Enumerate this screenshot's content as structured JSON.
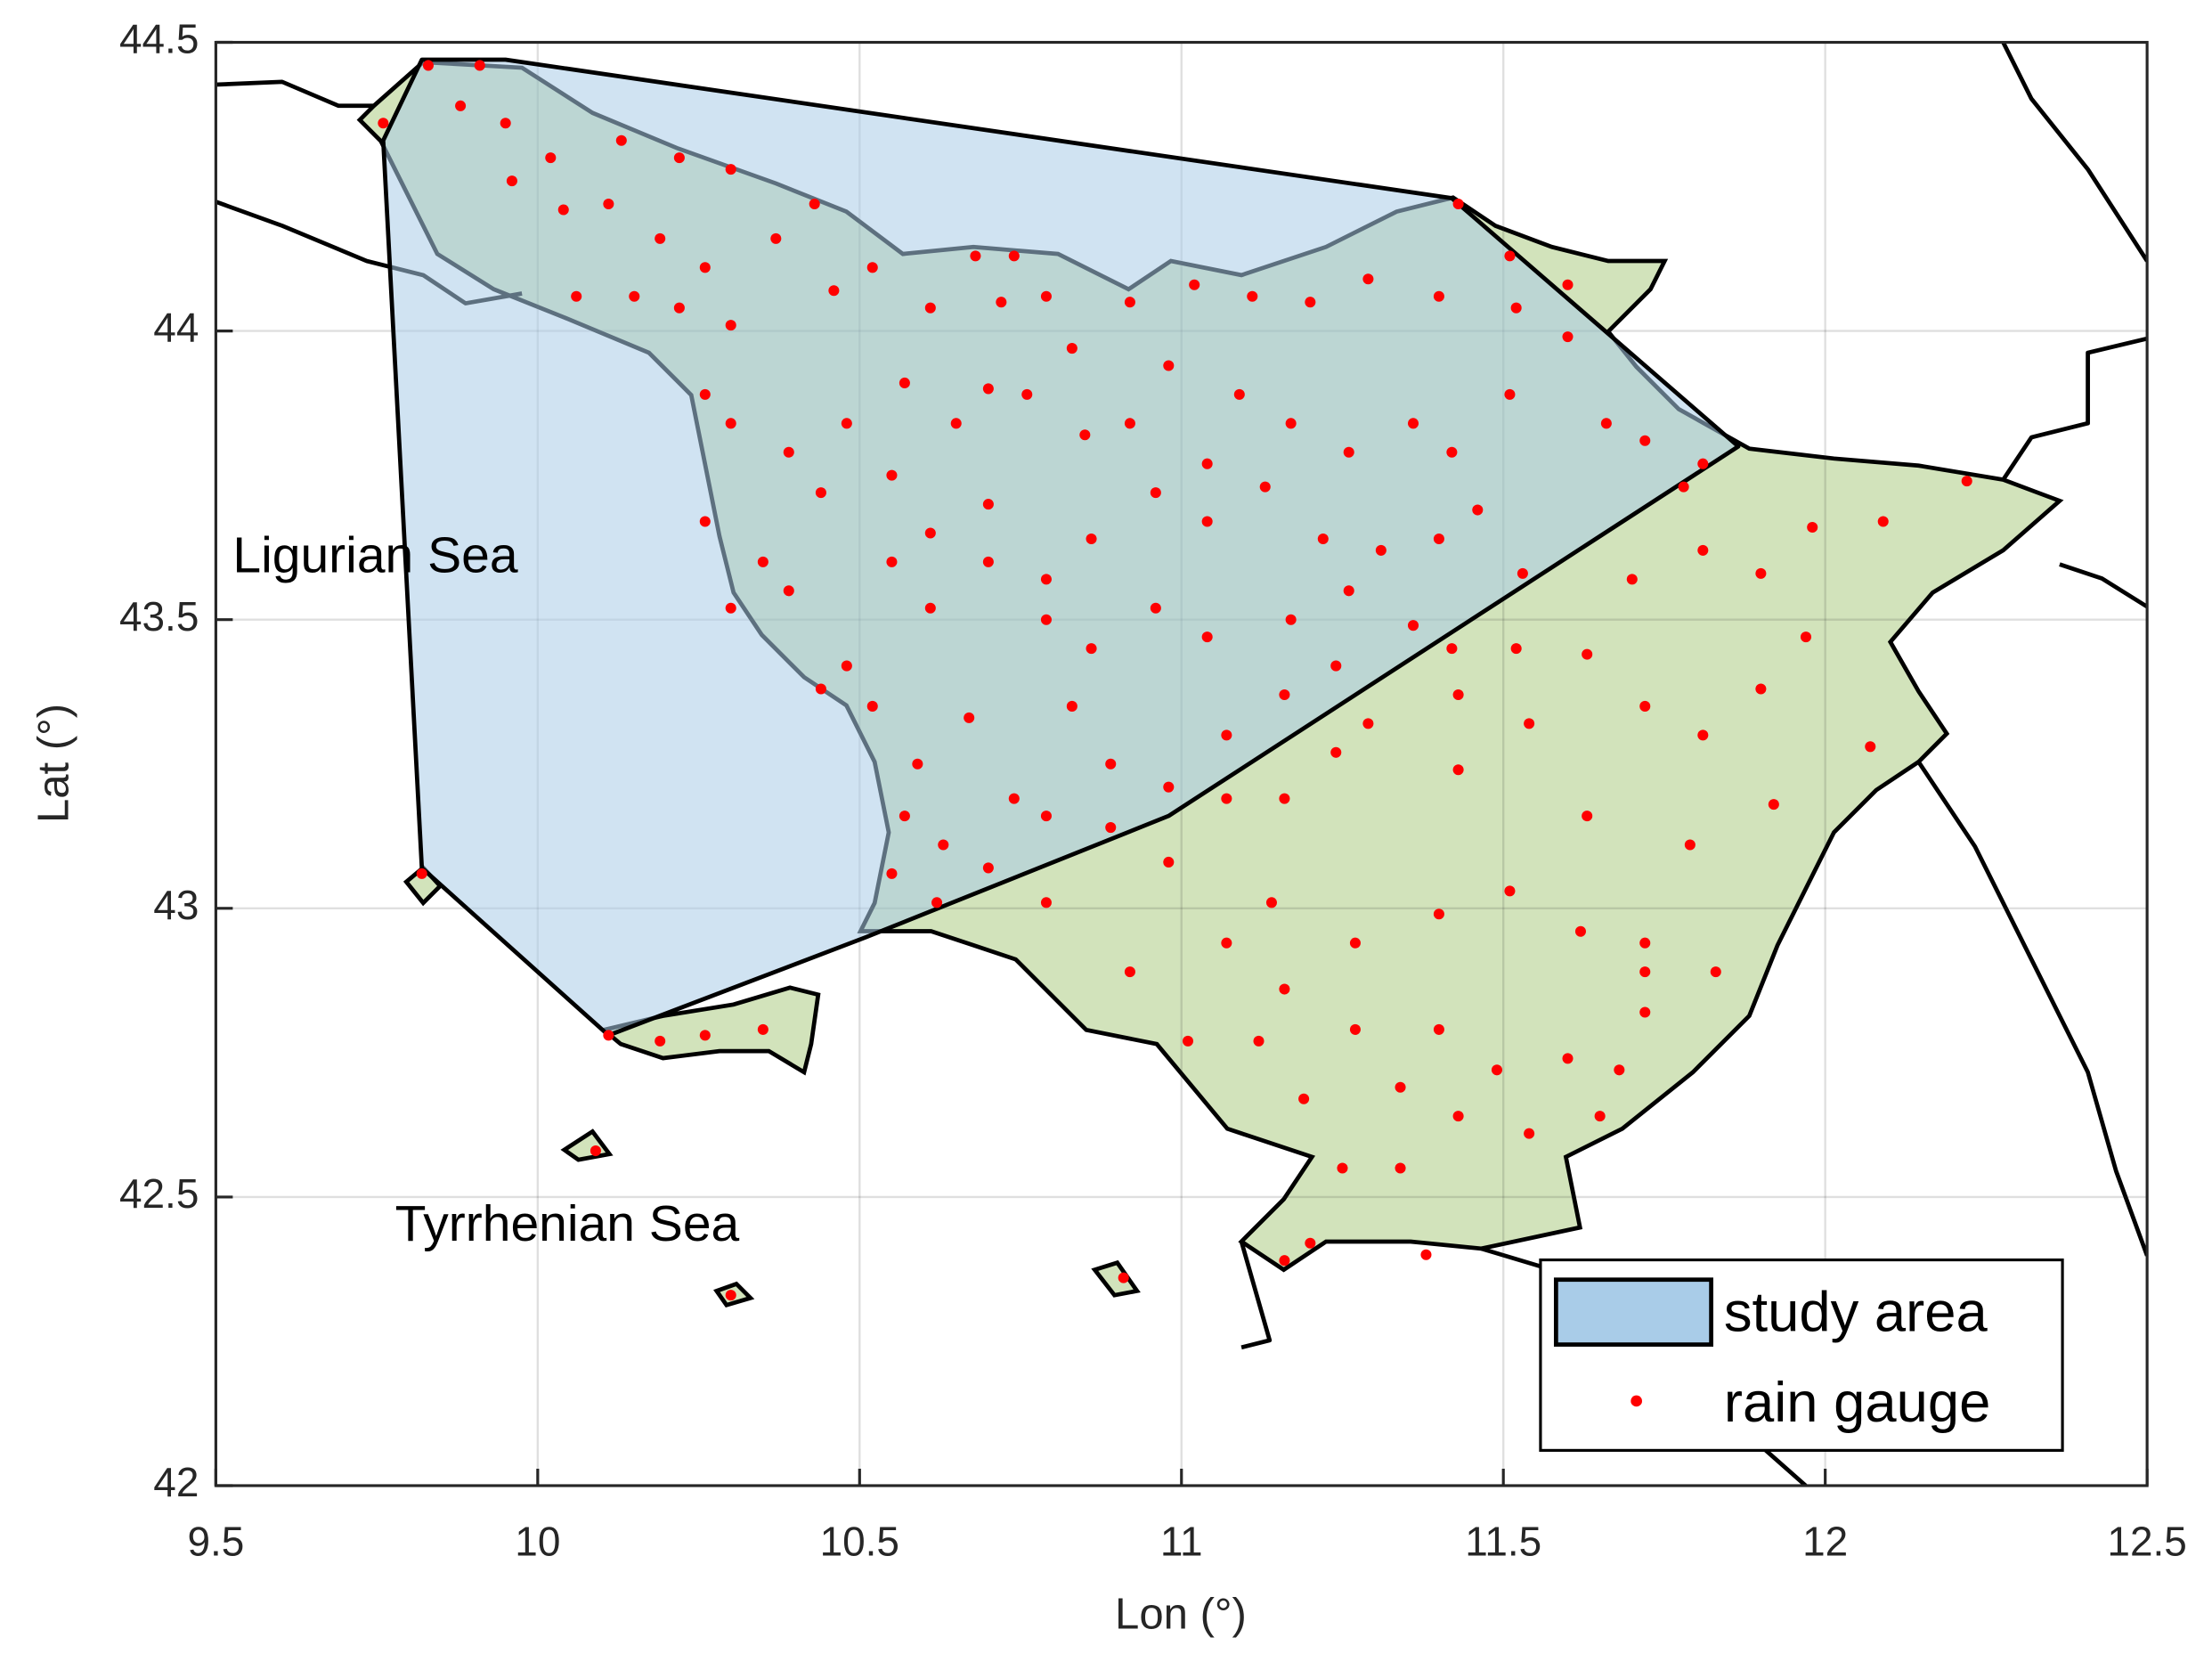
{
  "chart_data": {
    "type": "scatter",
    "xlabel": "Lon (°)",
    "ylabel": "Lat (°)",
    "annotations": [
      "Ligurian Sea",
      "Tyrrhenian Sea"
    ],
    "xlim": [
      9.5,
      12.5
    ],
    "ylim": [
      42,
      44.5
    ],
    "xticks": [
      9.5,
      10,
      10.5,
      11,
      11.5,
      12,
      12.5
    ],
    "yticks": [
      42,
      42.5,
      43,
      43.5,
      44,
      44.5
    ],
    "grid": true,
    "legend": "lower right",
    "regions": [
      {
        "name": "study area",
        "color": "#a9cce8",
        "lon": [
          9.82,
          9.95,
          11.42,
          11.865,
          10.98,
          10.51,
          10.11,
          9.82,
          9.76
        ],
        "lat": [
          44.47,
          44.47,
          44.23,
          43.8,
          43.16,
          42.95,
          42.78,
          43.07,
          44.33
        ]
      }
    ],
    "series": [
      {
        "name": "rain gauge",
        "color": "#ff0000",
        "x": [
          9.76,
          9.83,
          9.91,
          9.88,
          9.95,
          10.02,
          10.13,
          10.22,
          10.3,
          9.96,
          10.04,
          10.11,
          10.19,
          10.26,
          10.06,
          10.15,
          10.22,
          10.3,
          10.37,
          10.43,
          10.46,
          10.52,
          10.61,
          10.68,
          10.74,
          10.79,
          10.83,
          10.72,
          10.92,
          11.02,
          11.11,
          11.2,
          11.29,
          11.4,
          11.51,
          11.43,
          11.6,
          11.52,
          10.26,
          10.3,
          10.39,
          10.48,
          10.57,
          10.65,
          10.7,
          10.76,
          10.85,
          10.92,
          10.98,
          11.04,
          11.09,
          11.17,
          11.26,
          11.36,
          11.42,
          11.51,
          11.6,
          11.66,
          11.72,
          11.78,
          11.81,
          10.26,
          10.35,
          10.44,
          10.55,
          10.61,
          10.7,
          10.79,
          10.86,
          10.96,
          11.04,
          11.13,
          11.22,
          11.31,
          11.4,
          11.46,
          11.53,
          10.3,
          10.39,
          10.48,
          10.55,
          10.61,
          10.7,
          10.79,
          10.86,
          10.96,
          11.04,
          11.17,
          11.26,
          11.36,
          11.42,
          10.44,
          10.52,
          10.59,
          10.67,
          10.74,
          10.83,
          10.89,
          10.98,
          11.07,
          11.16,
          11.24,
          10.57,
          10.63,
          10.79,
          10.89,
          10.55,
          10.7,
          10.62,
          10.79,
          10.98,
          11.07,
          11.16,
          11.24,
          11.29,
          11.43,
          11.52,
          11.63,
          11.7,
          11.81,
          11.9,
          11.98,
          12.09,
          12.22,
          11.43,
          11.54,
          11.63,
          11.72,
          11.81,
          11.9,
          11.97,
          12.07,
          11.92,
          11.79,
          11.14,
          11.27,
          11.4,
          11.51,
          11.62,
          11.72,
          11.83,
          10.92,
          11.07,
          11.16,
          11.27,
          11.4,
          11.49,
          11.6,
          11.68,
          11.72,
          11.01,
          11.12,
          11.19,
          11.34,
          11.43,
          11.54,
          11.65,
          11.25,
          11.34,
          11.2,
          11.38,
          11.16,
          11.72,
          10.11,
          10.19,
          10.26,
          10.35,
          10.09,
          10.3,
          10.91,
          9.82
        ],
        "y": [
          44.36,
          44.46,
          44.46,
          44.39,
          44.36,
          44.3,
          44.33,
          44.3,
          44.28,
          44.26,
          44.21,
          44.22,
          44.16,
          44.11,
          44.06,
          44.06,
          44.04,
          44.01,
          44.16,
          44.22,
          44.07,
          44.11,
          44.04,
          44.13,
          44.13,
          44.06,
          43.97,
          44.05,
          44.05,
          44.08,
          44.06,
          44.05,
          44.09,
          44.06,
          44.13,
          44.22,
          44.08,
          44.04,
          43.89,
          43.84,
          43.79,
          43.84,
          43.91,
          43.84,
          43.9,
          43.89,
          43.82,
          43.84,
          43.94,
          43.77,
          43.89,
          43.84,
          43.79,
          43.84,
          43.79,
          43.89,
          43.99,
          43.84,
          43.81,
          43.73,
          43.77,
          43.67,
          43.6,
          43.72,
          43.75,
          43.65,
          43.7,
          43.57,
          43.64,
          43.72,
          43.67,
          43.73,
          43.64,
          43.62,
          43.64,
          43.69,
          43.58,
          43.52,
          43.55,
          43.42,
          43.6,
          43.52,
          43.6,
          43.5,
          43.45,
          43.52,
          43.47,
          43.5,
          43.55,
          43.49,
          43.45,
          43.38,
          43.35,
          43.25,
          43.33,
          43.19,
          43.35,
          43.25,
          43.21,
          43.3,
          43.37,
          43.42,
          43.16,
          43.11,
          43.16,
          43.14,
          43.06,
          43.07,
          43.01,
          43.01,
          43.08,
          43.19,
          43.19,
          43.27,
          43.32,
          43.37,
          43.45,
          43.44,
          43.57,
          43.62,
          43.58,
          43.66,
          43.67,
          43.74,
          43.24,
          43.32,
          43.16,
          43.35,
          43.3,
          43.38,
          43.47,
          43.28,
          43.18,
          43.11,
          43.01,
          42.94,
          42.99,
          43.03,
          42.96,
          42.94,
          42.89,
          42.89,
          42.94,
          42.86,
          42.79,
          42.79,
          42.72,
          42.74,
          42.72,
          42.82,
          42.77,
          42.77,
          42.67,
          42.69,
          42.64,
          42.61,
          42.64,
          42.55,
          42.55,
          42.42,
          42.4,
          42.39,
          42.89,
          42.78,
          42.77,
          42.78,
          42.79,
          42.58,
          42.33,
          42.36,
          43.06
        ]
      }
    ]
  }
}
